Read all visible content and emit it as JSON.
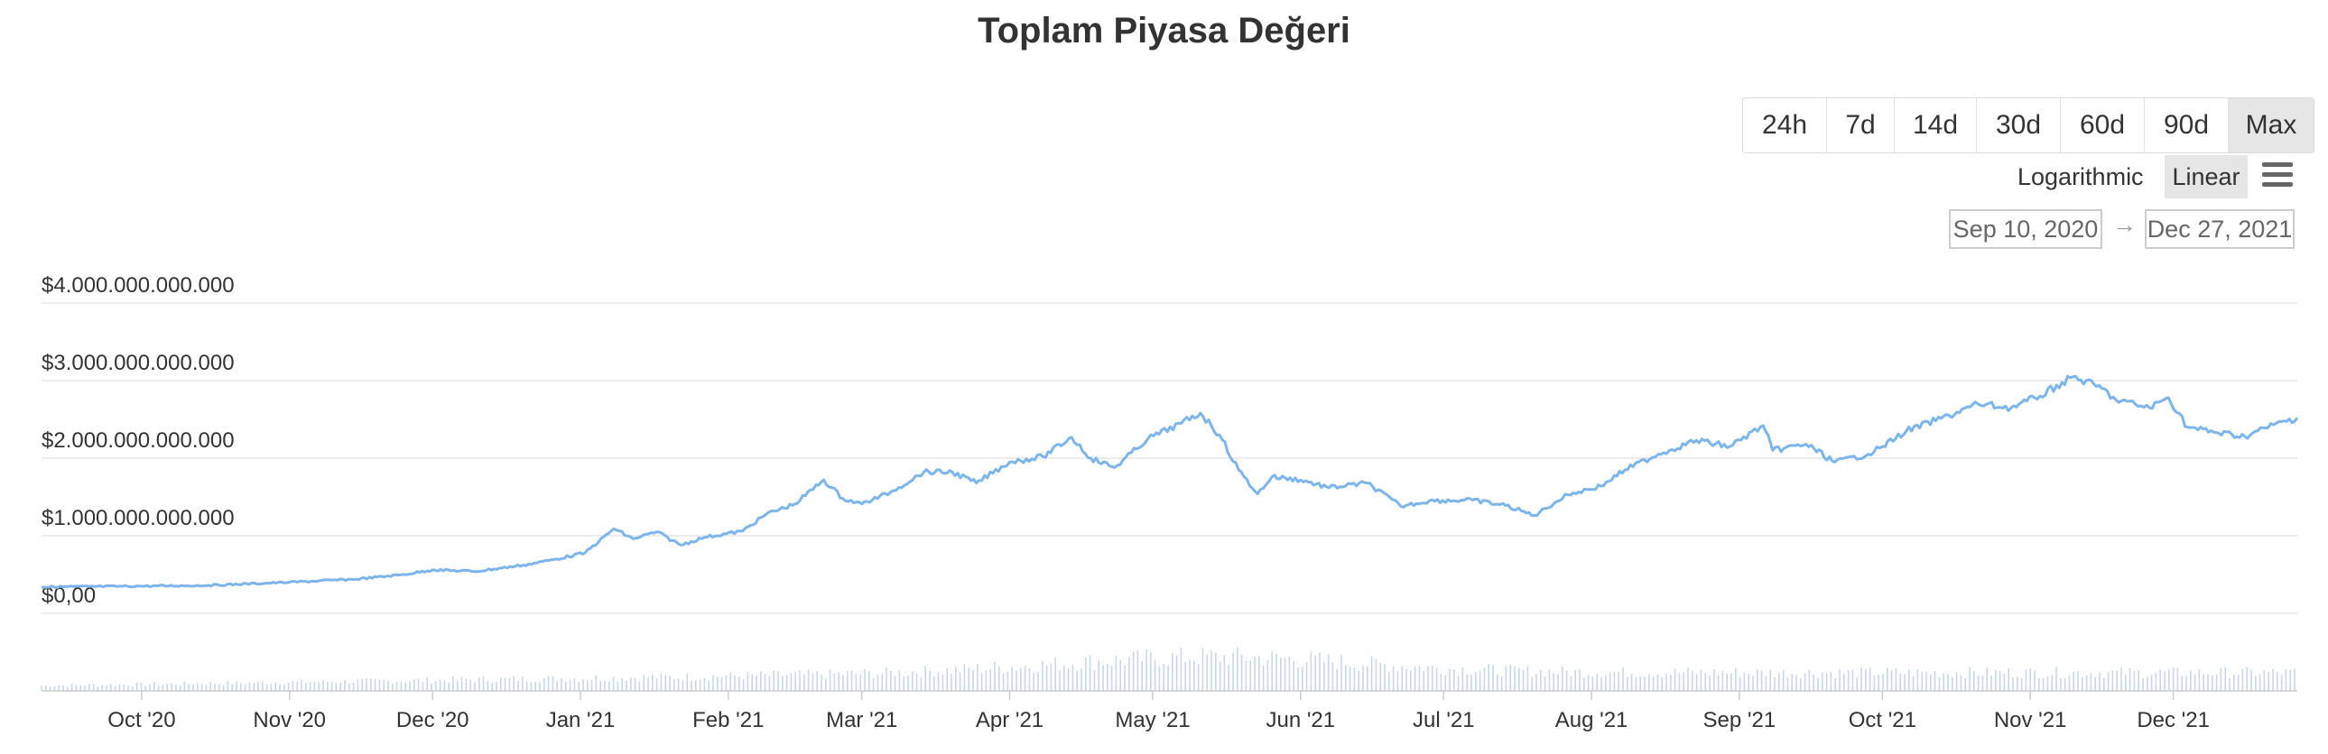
{
  "header": {
    "title": "Toplam Piyasa Değeri"
  },
  "range_buttons": [
    {
      "label": "24h",
      "active": false
    },
    {
      "label": "7d",
      "active": false
    },
    {
      "label": "14d",
      "active": false
    },
    {
      "label": "30d",
      "active": false
    },
    {
      "label": "60d",
      "active": false
    },
    {
      "label": "90d",
      "active": false
    },
    {
      "label": "Max",
      "active": true
    }
  ],
  "scale": {
    "log_label": "Logarithmic",
    "linear_label": "Linear",
    "selected": "Linear"
  },
  "menu": {
    "icon": "menu-icon"
  },
  "date_range": {
    "from": "Sep 10, 2020",
    "arrow": "→",
    "to": "Dec 27, 2021"
  },
  "chart_data": {
    "type": "line",
    "title": "Toplam Piyasa Değeri",
    "xlabel": "",
    "ylabel": "",
    "grid": true,
    "legend": "none",
    "y_ticks": [
      "$0,00",
      "$1.000.000.000.000",
      "$2.000.000.000.000",
      "$3.000.000.000.000",
      "$4.000.000.000.000"
    ],
    "y_tick_values": [
      0,
      1000000000000,
      2000000000000,
      3000000000000,
      4000000000000
    ],
    "ylim": [
      0,
      4000000000000
    ],
    "x_range": [
      "2020-09-10",
      "2021-12-27"
    ],
    "x_ticks": [
      {
        "label": "Oct '20",
        "date": "2020-10-01"
      },
      {
        "label": "Nov '20",
        "date": "2020-11-01"
      },
      {
        "label": "Dec '20",
        "date": "2020-12-01"
      },
      {
        "label": "Jan '21",
        "date": "2021-01-01"
      },
      {
        "label": "Feb '21",
        "date": "2021-02-01"
      },
      {
        "label": "Mar '21",
        "date": "2021-03-01"
      },
      {
        "label": "Apr '21",
        "date": "2021-04-01"
      },
      {
        "label": "May '21",
        "date": "2021-05-01"
      },
      {
        "label": "Jun '21",
        "date": "2021-06-01"
      },
      {
        "label": "Jul '21",
        "date": "2021-07-01"
      },
      {
        "label": "Aug '21",
        "date": "2021-08-01"
      },
      {
        "label": "Sep '21",
        "date": "2021-09-01"
      },
      {
        "label": "Oct '21",
        "date": "2021-10-01"
      },
      {
        "label": "Nov '21",
        "date": "2021-11-01"
      },
      {
        "label": "Dec '21",
        "date": "2021-12-01"
      }
    ],
    "series": [
      {
        "color": "#7cb5ec",
        "points": [
          [
            "2020-09-10",
            340000000000
          ],
          [
            "2020-09-20",
            345000000000
          ],
          [
            "2020-10-01",
            350000000000
          ],
          [
            "2020-10-15",
            360000000000
          ],
          [
            "2020-11-01",
            400000000000
          ],
          [
            "2020-11-15",
            440000000000
          ],
          [
            "2020-11-25",
            500000000000
          ],
          [
            "2020-12-01",
            560000000000
          ],
          [
            "2020-12-10",
            540000000000
          ],
          [
            "2020-12-20",
            620000000000
          ],
          [
            "2020-12-27",
            700000000000
          ],
          [
            "2021-01-02",
            780000000000
          ],
          [
            "2021-01-08",
            1090000000000
          ],
          [
            "2021-01-12",
            960000000000
          ],
          [
            "2021-01-17",
            1050000000000
          ],
          [
            "2021-01-22",
            880000000000
          ],
          [
            "2021-01-27",
            980000000000
          ],
          [
            "2021-02-04",
            1060000000000
          ],
          [
            "2021-02-09",
            1280000000000
          ],
          [
            "2021-02-15",
            1410000000000
          ],
          [
            "2021-02-21",
            1720000000000
          ],
          [
            "2021-02-25",
            1480000000000
          ],
          [
            "2021-03-01",
            1410000000000
          ],
          [
            "2021-03-07",
            1560000000000
          ],
          [
            "2021-03-14",
            1820000000000
          ],
          [
            "2021-03-20",
            1820000000000
          ],
          [
            "2021-03-25",
            1680000000000
          ],
          [
            "2021-04-01",
            1950000000000
          ],
          [
            "2021-04-08",
            2020000000000
          ],
          [
            "2021-04-14",
            2270000000000
          ],
          [
            "2021-04-18",
            2000000000000
          ],
          [
            "2021-04-23",
            1880000000000
          ],
          [
            "2021-04-30",
            2250000000000
          ],
          [
            "2021-05-07",
            2450000000000
          ],
          [
            "2021-05-11",
            2580000000000
          ],
          [
            "2021-05-15",
            2300000000000
          ],
          [
            "2021-05-19",
            1850000000000
          ],
          [
            "2021-05-23",
            1540000000000
          ],
          [
            "2021-05-26",
            1760000000000
          ],
          [
            "2021-06-01",
            1720000000000
          ],
          [
            "2021-06-07",
            1620000000000
          ],
          [
            "2021-06-15",
            1680000000000
          ],
          [
            "2021-06-22",
            1380000000000
          ],
          [
            "2021-06-28",
            1450000000000
          ],
          [
            "2021-07-07",
            1460000000000
          ],
          [
            "2021-07-14",
            1390000000000
          ],
          [
            "2021-07-20",
            1260000000000
          ],
          [
            "2021-07-27",
            1530000000000
          ],
          [
            "2021-08-03",
            1640000000000
          ],
          [
            "2021-08-08",
            1850000000000
          ],
          [
            "2021-08-15",
            2050000000000
          ],
          [
            "2021-08-23",
            2230000000000
          ],
          [
            "2021-08-30",
            2150000000000
          ],
          [
            "2021-09-06",
            2420000000000
          ],
          [
            "2021-09-08",
            2100000000000
          ],
          [
            "2021-09-15",
            2180000000000
          ],
          [
            "2021-09-21",
            1950000000000
          ],
          [
            "2021-09-28",
            2050000000000
          ],
          [
            "2021-10-01",
            2150000000000
          ],
          [
            "2021-10-06",
            2350000000000
          ],
          [
            "2021-10-15",
            2550000000000
          ],
          [
            "2021-10-21",
            2700000000000
          ],
          [
            "2021-10-28",
            2650000000000
          ],
          [
            "2021-11-03",
            2800000000000
          ],
          [
            "2021-11-10",
            3050000000000
          ],
          [
            "2021-11-16",
            2900000000000
          ],
          [
            "2021-11-19",
            2750000000000
          ],
          [
            "2021-11-26",
            2650000000000
          ],
          [
            "2021-11-30",
            2780000000000
          ],
          [
            "2021-12-04",
            2400000000000
          ],
          [
            "2021-12-10",
            2330000000000
          ],
          [
            "2021-12-16",
            2280000000000
          ],
          [
            "2021-12-22",
            2430000000000
          ],
          [
            "2021-12-27",
            2520000000000
          ]
        ]
      }
    ]
  }
}
